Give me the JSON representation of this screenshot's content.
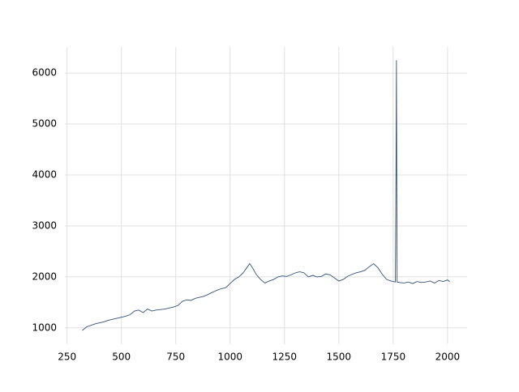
{
  "chart_data": {
    "type": "line",
    "x": [
      320,
      340,
      360,
      380,
      400,
      420,
      440,
      460,
      480,
      500,
      520,
      540,
      560,
      580,
      600,
      620,
      640,
      660,
      680,
      700,
      720,
      740,
      760,
      780,
      800,
      820,
      840,
      860,
      880,
      900,
      920,
      940,
      960,
      980,
      1000,
      1020,
      1040,
      1060,
      1080,
      1090,
      1100,
      1120,
      1140,
      1160,
      1180,
      1200,
      1220,
      1240,
      1260,
      1280,
      1300,
      1320,
      1340,
      1360,
      1380,
      1400,
      1420,
      1440,
      1460,
      1480,
      1500,
      1520,
      1540,
      1560,
      1580,
      1600,
      1620,
      1640,
      1660,
      1680,
      1700,
      1720,
      1740,
      1760,
      1763,
      1765,
      1768,
      1780,
      1800,
      1820,
      1840,
      1860,
      1880,
      1900,
      1920,
      1940,
      1960,
      1980,
      2000,
      2010
    ],
    "series": [
      {
        "color": "#34507a",
        "values": [
          950,
          1020,
          1050,
          1080,
          1100,
          1120,
          1150,
          1170,
          1190,
          1210,
          1230,
          1260,
          1330,
          1350,
          1300,
          1370,
          1330,
          1350,
          1360,
          1370,
          1390,
          1410,
          1440,
          1520,
          1550,
          1540,
          1580,
          1600,
          1620,
          1660,
          1700,
          1740,
          1770,
          1790,
          1870,
          1950,
          2000,
          2080,
          2200,
          2260,
          2200,
          2050,
          1950,
          1880,
          1920,
          1950,
          2000,
          2020,
          2010,
          2040,
          2080,
          2100,
          2080,
          2000,
          2030,
          2000,
          2010,
          2060,
          2040,
          1980,
          1920,
          1950,
          2010,
          2050,
          2080,
          2100,
          2130,
          2200,
          2260,
          2180,
          2050,
          1950,
          1920,
          1900,
          4000,
          6250,
          1900,
          1890,
          1880,
          1900,
          1870,
          1910,
          1890,
          1900,
          1920,
          1880,
          1930,
          1910,
          1940,
          1910
        ]
      }
    ],
    "xlim": [
      240,
      2090
    ],
    "ylim": [
      680,
      6510
    ],
    "xticks": [
      250,
      500,
      750,
      1000,
      1250,
      1500,
      1750,
      2000
    ],
    "yticks": [
      1000,
      2000,
      3000,
      4000,
      5000,
      6000
    ],
    "grid": true
  }
}
